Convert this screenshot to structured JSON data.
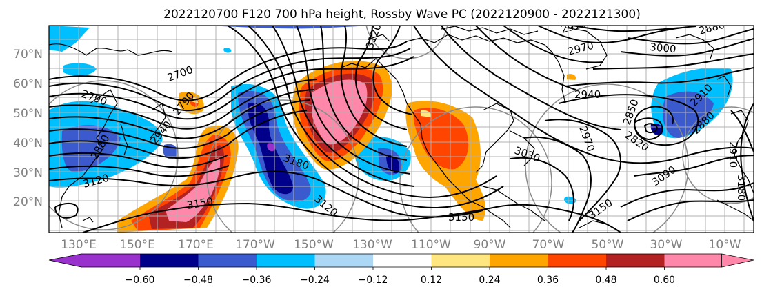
{
  "title": "2022120700 F120 700 hPa height, Rossby Wave PC (2022120900 - 2022121300)",
  "map": {
    "lat_labels": [
      "70°N",
      "60°N",
      "50°N",
      "40°N",
      "30°N",
      "20°N"
    ],
    "lon_labels": [
      "130°E",
      "150°E",
      "170°E",
      "170°W",
      "150°W",
      "130°W",
      "110°W",
      "90°W",
      "70°W",
      "50°W",
      "30°W",
      "10°W"
    ],
    "contour_labels": [
      "2910",
      "2880",
      "2970",
      "3000",
      "2940",
      "2910",
      "2700",
      "2790",
      "2940",
      "2790",
      "2880",
      "3150",
      "3120",
      "3180",
      "3120",
      "3150",
      "3030",
      "2970",
      "2850",
      "2880",
      "2820",
      "3090",
      "3150",
      "3180",
      "2910",
      "3120"
    ],
    "colors": {
      "purple": "#9932cc",
      "navy": "#00008b",
      "royal": "#3a5acd",
      "sky": "#00bfff",
      "light": "#add8f5",
      "white": "#ffffff",
      "yellow": "#ffe680",
      "orange": "#ffa500",
      "redorange": "#ff4500",
      "firebrick": "#b22222",
      "pink": "#ff88aa"
    }
  },
  "colorbar": {
    "ticks": [
      "−0.60",
      "−0.48",
      "−0.36",
      "−0.24",
      "−0.12",
      "0.12",
      "0.24",
      "0.36",
      "0.48",
      "0.60"
    ],
    "colors": [
      "#9932cc",
      "#00008b",
      "#3a5acd",
      "#00bfff",
      "#add8f5",
      "#ffffff",
      "#ffe680",
      "#ffa500",
      "#ff4500",
      "#b22222",
      "#ff88aa"
    ]
  }
}
